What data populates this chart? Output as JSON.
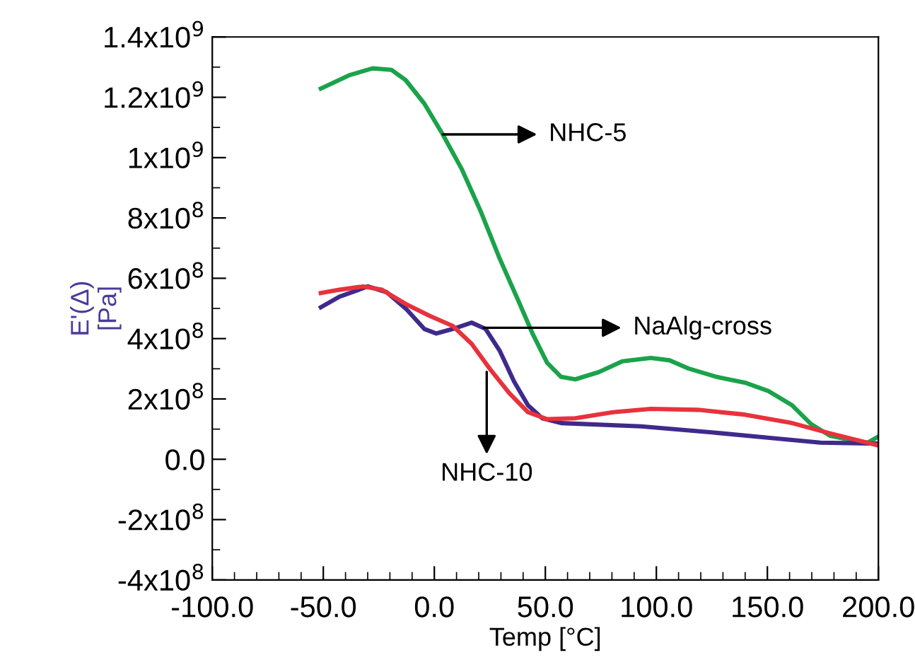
{
  "chart_data": {
    "type": "line",
    "xlabel": "Temp [°C]",
    "ylabel": "E'(Δ)\n[Pa]",
    "xlim": [
      -100,
      200
    ],
    "ylim": [
      -400000000,
      1400000000
    ],
    "xticks": [
      {
        "value": -100,
        "label": "-100.0"
      },
      {
        "value": -50,
        "label": "-50.0"
      },
      {
        "value": 0,
        "label": "0.0"
      },
      {
        "value": 50,
        "label": "50.0"
      },
      {
        "value": 100,
        "label": "100.0"
      },
      {
        "value": 150,
        "label": "150.0"
      },
      {
        "value": 200,
        "label": "200.0"
      }
    ],
    "yticks": [
      {
        "value": -400000000,
        "label": "-4x10$^{8}$"
      },
      {
        "value": -200000000,
        "label": "-2x10$^{8}$"
      },
      {
        "value": 0,
        "label": "0.0"
      },
      {
        "value": 200000000,
        "label": "2x10$^{8}$"
      },
      {
        "value": 400000000,
        "label": "4x10$^{8}$"
      },
      {
        "value": 600000000,
        "label": "6x10$^{8}$"
      },
      {
        "value": 800000000,
        "label": "8x10$^{8}$"
      },
      {
        "value": 1000000000,
        "label": "1x10$^{9}$"
      },
      {
        "value": 1200000000,
        "label": "1.2x10$^{9}$"
      },
      {
        "value": 1400000000,
        "label": "1.4x10$^{9}$"
      }
    ],
    "grid": false,
    "legend": false,
    "marker": "none",
    "line_style": "solid",
    "series": [
      {
        "color": "#1aa34a",
        "x": [
          -51.1,
          -38.4,
          -27.8,
          -19.3,
          -12.9,
          -4.5,
          3.8,
          12.5,
          21,
          29.5,
          38,
          44.4,
          50.8,
          57.1,
          63.5,
          74.1,
          84.7,
          97.5,
          106,
          114.4,
          127.2,
          139.9,
          150.5,
          161.1,
          169.6,
          178.2,
          188.7,
          195.1,
          199.4
        ],
        "values": [
          1229000000.0,
          1273000000.0,
          1296000000.0,
          1291000000.0,
          1257000000.0,
          1179000000.0,
          1077000000.0,
          960000000.0,
          820000000.0,
          664000000.0,
          523000000.0,
          414000000.0,
          320000000.0,
          273000000.0,
          265000000.0,
          289000000.0,
          325000000.0,
          336000000.0,
          328000000.0,
          301000000.0,
          273000000.0,
          254000000.0,
          226000000.0,
          179000000.0,
          117000000.0,
          78000000.0,
          62000000.0,
          55000000.0,
          73000000.0
        ]
      },
      {
        "color": "#3f2a8c",
        "x": [
          -51.1,
          -42.7,
          -29.9,
          -21.5,
          -12.9,
          -4.5,
          0.8,
          8.3,
          16.8,
          23.1,
          29.5,
          35.9,
          42.2,
          48.6,
          57.1,
          93.2,
          125,
          152.7,
          173.9,
          199.4
        ],
        "values": [
          504000000.0,
          539000000.0,
          573000000.0,
          554000000.0,
          500000000.0,
          432000000.0,
          417000000.0,
          432000000.0,
          453000000.0,
          432000000.0,
          359000000.0,
          258000000.0,
          179000000.0,
          136000000.0,
          120000000.0,
          109000000.0,
          89000000.0,
          70000000.0,
          55000000.0,
          52000000.0
        ]
      },
      {
        "color": "#e8323c",
        "x": [
          -51.1,
          -42.7,
          -32,
          -23.6,
          -12.9,
          -2.3,
          8.3,
          16.8,
          25.3,
          33.8,
          42.2,
          50.8,
          63.5,
          80.4,
          97.5,
          118.7,
          139.9,
          161.1,
          178.2,
          199.4
        ],
        "values": [
          551000000.0,
          562000000.0,
          573000000.0,
          562000000.0,
          515000000.0,
          476000000.0,
          442000000.0,
          383000000.0,
          297000000.0,
          219000000.0,
          156000000.0,
          133000000.0,
          136000000.0,
          156000000.0,
          167000000.0,
          164000000.0,
          148000000.0,
          120000000.0,
          86000000.0,
          47000000.0
        ]
      }
    ],
    "annotations": [
      {
        "text": "NHC-5",
        "x": 3.8,
        "y": 1077000000.0
      },
      {
        "text": "NaAlg-cross",
        "x": 22.3,
        "y": 436000000.0
      },
      {
        "text": "NHC-10",
        "x": 23.6,
        "y": 290000000.0
      }
    ]
  }
}
